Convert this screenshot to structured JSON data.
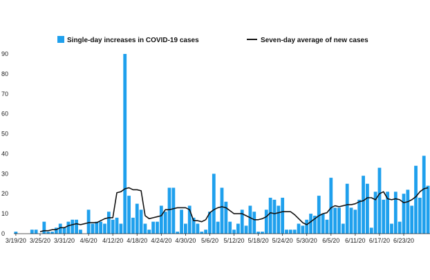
{
  "chart_data": {
    "type": "bar",
    "categories": [
      "3/19/20",
      "3/20/20",
      "3/21/20",
      "3/22/20",
      "3/23/20",
      "3/24/20",
      "3/25/20",
      "3/26/20",
      "3/27/20",
      "3/28/20",
      "3/29/20",
      "3/30/20",
      "3/31/20",
      "4/1/20",
      "4/2/20",
      "4/3/20",
      "4/4/20",
      "4/5/20",
      "4/6/20",
      "4/7/20",
      "4/8/20",
      "4/9/20",
      "4/10/20",
      "4/11/20",
      "4/12/20",
      "4/13/20",
      "4/14/20",
      "4/15/20",
      "4/16/20",
      "4/17/20",
      "4/18/20",
      "4/19/20",
      "4/20/20",
      "4/21/20",
      "4/22/20",
      "4/23/20",
      "4/24/20",
      "4/25/20",
      "4/26/20",
      "4/27/20",
      "4/28/20",
      "4/29/20",
      "4/30/20",
      "5/1/20",
      "5/2/20",
      "5/3/20",
      "5/4/20",
      "5/5/20",
      "5/6/20",
      "5/7/20",
      "5/8/20",
      "5/9/20",
      "5/10/20",
      "5/11/20",
      "5/12/20",
      "5/13/20",
      "5/14/20",
      "5/15/20",
      "5/16/20",
      "5/17/20",
      "5/18/20",
      "5/19/20",
      "5/20/20",
      "5/21/20",
      "5/22/20",
      "5/23/20",
      "5/24/20",
      "5/25/20",
      "5/26/20",
      "5/27/20",
      "5/28/20",
      "5/29/20",
      "5/30/20",
      "5/31/20",
      "6/1/20",
      "6/2/20",
      "6/3/20",
      "6/4/20",
      "6/5/20",
      "6/6/20",
      "6/7/20",
      "6/8/20",
      "6/9/20",
      "6/10/20",
      "6/11/20",
      "6/12/20",
      "6/13/20",
      "6/14/20",
      "6/15/20",
      "6/16/20",
      "6/17/20",
      "6/18/20",
      "6/19/20",
      "6/20/20",
      "6/21/20",
      "6/22/20",
      "6/23/20",
      "6/24/20",
      "6/25/20",
      "6/26/20",
      "6/27/20",
      "6/28/20",
      "6/29/20"
    ],
    "x_tick_labels": [
      "3/19/20",
      "3/25/20",
      "3/31/20",
      "4/6/20",
      "4/12/20",
      "4/18/20",
      "4/24/20",
      "4/30/20",
      "5/6/20",
      "5/12/20",
      "5/18/20",
      "5/24/20",
      "5/30/20",
      "6/5/20",
      "6/11/20",
      "6/17/20",
      "6/23/20"
    ],
    "y_tick_labels": [
      "0",
      "10",
      "20",
      "30",
      "40",
      "50",
      "60",
      "70",
      "80",
      "90"
    ],
    "ylim": [
      0,
      90
    ],
    "grid": false,
    "legend_position": "top",
    "series": [
      {
        "name": "Single-day increases in COVID-19 cases",
        "type": "bar",
        "color": "#1fa0ed",
        "values": [
          1,
          0,
          0,
          0,
          2,
          2,
          0,
          6,
          1,
          1,
          3,
          5,
          3,
          6,
          7,
          7,
          2,
          0,
          12,
          5,
          6,
          6,
          5,
          11,
          7,
          8,
          5,
          90,
          19,
          8,
          15,
          12,
          5,
          2,
          6,
          6,
          14,
          11,
          23,
          23,
          1,
          12,
          5,
          14,
          8,
          5,
          1,
          2,
          11,
          30,
          6,
          23,
          16,
          6,
          2,
          5,
          12,
          4,
          14,
          11,
          1,
          1,
          12,
          18,
          17,
          14,
          18,
          2,
          2,
          2,
          5,
          4,
          7,
          10,
          9,
          19,
          10,
          7,
          28,
          13,
          13,
          5,
          25,
          13,
          12,
          17,
          29,
          25,
          3,
          21,
          33,
          17,
          21,
          5,
          21,
          6,
          20,
          22,
          14,
          34,
          18,
          39,
          24
        ]
      },
      {
        "name": "Seven-day average of new cases",
        "type": "line",
        "color": "#111111",
        "values": [
          null,
          null,
          null,
          null,
          null,
          null,
          1,
          1.5,
          1.5,
          2,
          2,
          3,
          3,
          4,
          4.5,
          5,
          4.5,
          5,
          5.5,
          5.5,
          5.5,
          6.5,
          7.5,
          8,
          8,
          20.5,
          21,
          22.5,
          23,
          22,
          22,
          21.5,
          9,
          7.5,
          8,
          8.5,
          9,
          12,
          12,
          12.5,
          13,
          13,
          13,
          12,
          6.5,
          6.5,
          6,
          7,
          10.5,
          12,
          13,
          13.5,
          13,
          11.5,
          10,
          10,
          10,
          9,
          8,
          7,
          7,
          7.5,
          8.5,
          10.5,
          10,
          10.5,
          11,
          11,
          11,
          9.5,
          7.5,
          5.5,
          4.5,
          6,
          7.5,
          9,
          10,
          10.5,
          13,
          14,
          13.5,
          14,
          14.5,
          14.5,
          15,
          16,
          16.5,
          18,
          18,
          17,
          20,
          21,
          17.5,
          17,
          17.5,
          17,
          15.5,
          16,
          17,
          18.5,
          21,
          22.5,
          23
        ]
      }
    ]
  }
}
